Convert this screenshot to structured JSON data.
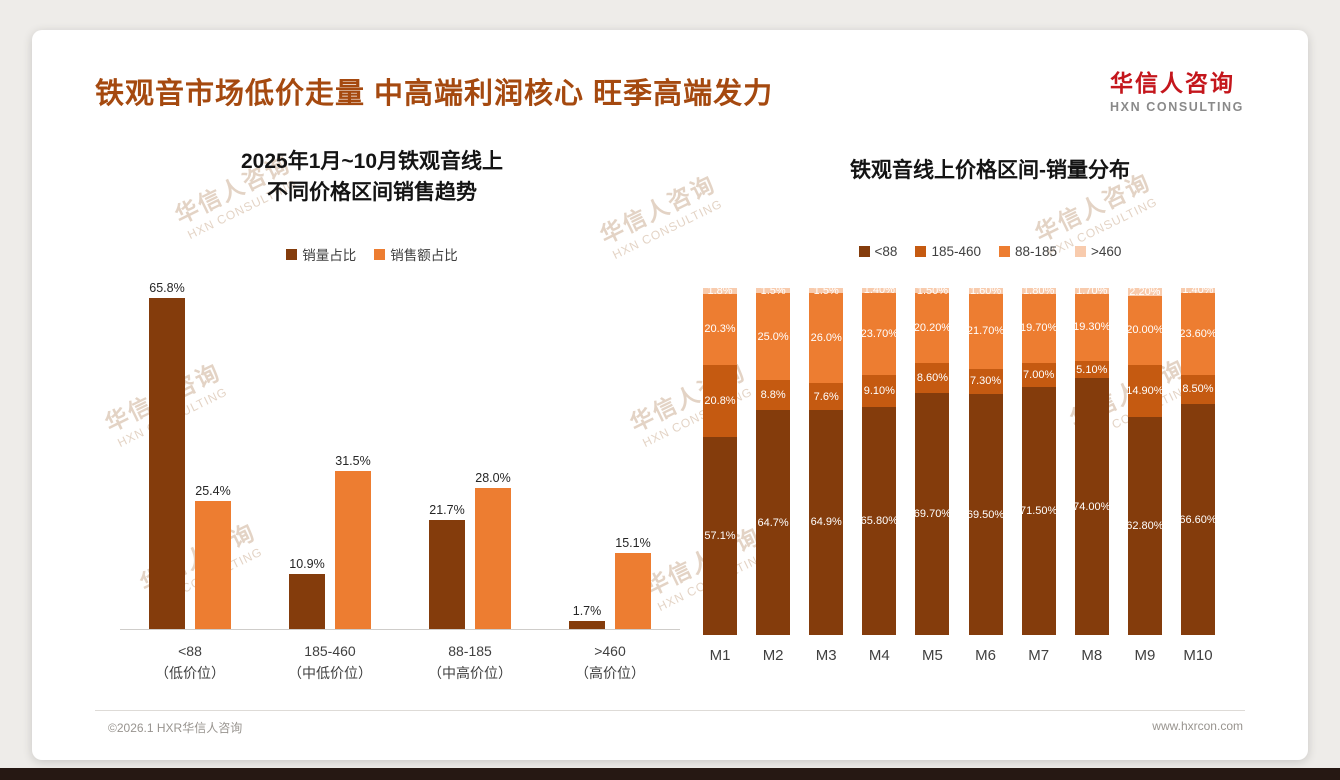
{
  "slide": {
    "title": "铁观音市场低价走量 中高端利润核心 旺季高端发力",
    "logo": {
      "cn": "华信人咨询",
      "en": "HXN CONSULTING"
    },
    "watermark": {
      "cn": "华信人咨询",
      "en": "HXN CONSULTING"
    },
    "footer": {
      "left": "©2026.1 HXR华信人咨询",
      "right": "www.hxrcon.com"
    }
  },
  "colors": {
    "title": "#A5490F",
    "logo_red": "#C4161C",
    "series_dark_brown": "#843C0C",
    "series_mid_brown": "#C55A11",
    "series_orange": "#ED7D31",
    "series_light_peach": "#F8CBAD",
    "bottom_strip": "#261813"
  },
  "chart_data": [
    {
      "type": "bar",
      "title": "2025年1月~10月铁观音线上\n不同价格区间销售趋势",
      "categories": [
        "<88\n（低价位）",
        "185-460\n（中低价位）",
        "88-185\n（中高价位）",
        ">460\n（高价位）"
      ],
      "series": [
        {
          "name": "销量占比",
          "color": "#843C0C",
          "values": [
            65.8,
            10.9,
            21.7,
            1.7
          ],
          "labels": [
            "65.8%",
            "10.9%",
            "21.7%",
            "1.7%"
          ]
        },
        {
          "name": "销售额占比",
          "color": "#ED7D31",
          "values": [
            25.4,
            31.5,
            28.0,
            15.1
          ],
          "labels": [
            "25.4%",
            "31.5%",
            "28.0%",
            "15.1%"
          ]
        }
      ],
      "ylim": [
        0,
        70
      ],
      "grid": false,
      "legend_position": "top"
    },
    {
      "type": "stacked-bar",
      "title": "铁观音线上价格区间-销量分布",
      "categories": [
        "M1",
        "M2",
        "M3",
        "M4",
        "M5",
        "M6",
        "M7",
        "M8",
        "M9",
        "M10"
      ],
      "series": [
        {
          "name": "<88",
          "color": "#843C0C",
          "values": [
            57.1,
            64.7,
            64.9,
            65.8,
            69.7,
            69.5,
            71.5,
            74.0,
            62.8,
            66.6
          ],
          "labels": [
            "57.1%",
            "64.7%",
            "64.9%",
            "65.80%",
            "69.70%",
            "69.50%",
            "71.50%",
            "74.00%",
            "62.80%",
            "66.60%"
          ]
        },
        {
          "name": "185-460",
          "color": "#C55A11",
          "values": [
            20.8,
            8.8,
            7.6,
            9.1,
            8.6,
            7.3,
            7.0,
            5.1,
            14.9,
            8.5
          ],
          "labels": [
            "20.8%",
            "8.8%",
            "7.6%",
            "9.10%",
            "8.60%",
            "7.30%",
            "7.00%",
            "5.10%",
            "14.90%",
            "8.50%"
          ]
        },
        {
          "name": "88-185",
          "color": "#ED7D31",
          "values": [
            20.3,
            25.0,
            26.0,
            23.7,
            20.2,
            21.7,
            19.7,
            19.3,
            20.0,
            23.6
          ],
          "labels": [
            "20.3%",
            "25.0%",
            "26.0%",
            "23.70%",
            "20.20%",
            "21.70%",
            "19.70%",
            "19.30%",
            "20.00%",
            "23.60%"
          ]
        },
        {
          "name": ">460",
          "color": "#F8CBAD",
          "values": [
            1.8,
            1.5,
            1.5,
            1.4,
            1.5,
            1.6,
            1.8,
            1.7,
            2.2,
            1.4
          ],
          "labels": [
            "1.8%",
            "1.5%",
            "1.5%",
            "1.40%",
            "1.50%",
            "1.60%",
            "1.80%",
            "1.70%",
            "2.20%",
            "1.40%"
          ]
        }
      ],
      "ylim": [
        0,
        100
      ],
      "grid": false,
      "legend_position": "top"
    }
  ]
}
